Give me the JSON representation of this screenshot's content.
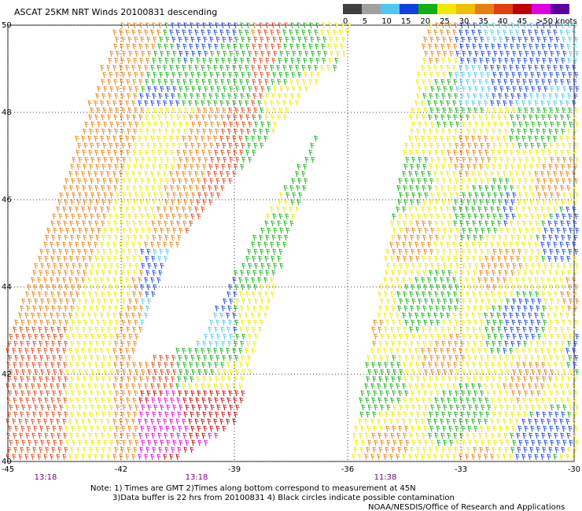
{
  "header": {
    "title": "ASCAT 25KM NRT Winds 20100831 descending"
  },
  "legend": {
    "colors": [
      "#404040",
      "#a0a0a0",
      "#4fc8f0",
      "#1040e0",
      "#10b010",
      "#f0e800",
      "#f0c000",
      "#e88010",
      "#e04010",
      "#c00000",
      "#e000e0",
      "#6000a0"
    ],
    "labels": [
      0,
      5,
      10,
      15,
      20,
      25,
      30,
      35,
      40,
      45,
      ">50 knots"
    ]
  },
  "axes": {
    "lat_labels": [
      50,
      48,
      46,
      44,
      42,
      40
    ],
    "lon_labels": [
      -45,
      -42,
      -39,
      -36,
      -33,
      -30
    ]
  },
  "times": [
    {
      "label": "13:18",
      "lon": -44
    },
    {
      "label": "13:18",
      "lon": -40
    },
    {
      "label": "11:38",
      "lon": -35
    }
  ],
  "notes": [
    "Note: 1) Times are GMT 2)Times along bottom correspond to measurement at 45N",
    "3)Data buffer is 22 hrs from 20100831 4) Black circles indicate possible contamination",
    "NOAA/NESDIS/Office of Research and Applications"
  ]
}
